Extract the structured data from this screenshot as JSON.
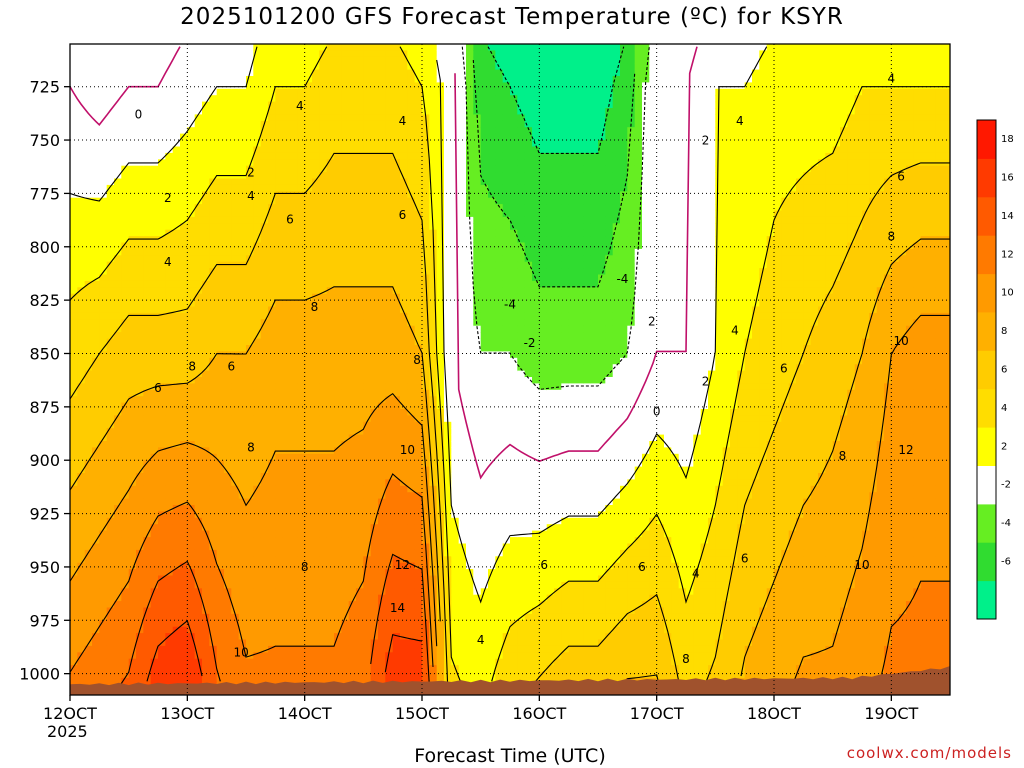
{
  "chart_data": {
    "type": "heatmap",
    "title": "2025101200 GFS Forecast Temperature (ºC) for KSYR",
    "xlabel": "Forecast Time (UTC)",
    "ylabel": "",
    "year_label": "2025",
    "x_tick_labels": [
      "12OCT",
      "13OCT",
      "14OCT",
      "15OCT",
      "16OCT",
      "17OCT",
      "18OCT",
      "19OCT"
    ],
    "x_ticks": [
      0,
      24,
      48,
      72,
      96,
      120,
      144,
      168
    ],
    "x_range": [
      0,
      180
    ],
    "y_ticks": [
      725,
      750,
      775,
      800,
      825,
      850,
      875,
      900,
      925,
      950,
      975,
      1000
    ],
    "y_range": [
      705,
      1010
    ],
    "y_reversed": true,
    "colorbar": {
      "levels": [
        -8,
        -6,
        -4,
        -2,
        2,
        4,
        6,
        8,
        10,
        12,
        14,
        16,
        18,
        20
      ],
      "tick_labels": [
        "-6",
        "-4",
        "-2",
        "2",
        "4",
        "6",
        "8",
        "10",
        "12",
        "14",
        "16",
        "18"
      ],
      "colors": [
        "#00f08a",
        "#30dc30",
        "#66ee22",
        "#ffffff",
        "#ffff00",
        "#ffdd00",
        "#ffcc00",
        "#ffb000",
        "#ff9a00",
        "#ff7a00",
        "#ff5a00",
        "#ff3a00",
        "#ff1800"
      ]
    },
    "columns": [
      {
        "t": 0,
        "T725": 0,
        "T850": 5,
        "T1000": 12
      },
      {
        "t": 6,
        "T725": -1,
        "T850": 6,
        "T1000": 13
      },
      {
        "t": 12,
        "T725": 0,
        "T850": 7,
        "T1000": 14
      },
      {
        "t": 18,
        "T725": 0,
        "T850": 7,
        "T1000": 17
      },
      {
        "t": 24,
        "T725": 1,
        "T850": 7,
        "T1000": 18
      },
      {
        "t": 30,
        "T725": 2,
        "T850": 8,
        "T1000": 14
      },
      {
        "t": 36,
        "T725": 2,
        "T850": 8,
        "T1000": 12
      },
      {
        "t": 42,
        "T725": 4,
        "T850": 9,
        "T1000": 12
      },
      {
        "t": 48,
        "T725": 4,
        "T850": 9,
        "T1000": 12
      },
      {
        "t": 54,
        "T725": 5,
        "T850": 9,
        "T1000": 12
      },
      {
        "t": 60,
        "T725": 5,
        "T850": 9,
        "T1000": 13
      },
      {
        "t": 66,
        "T725": 5,
        "T850": 9,
        "T1000": 17
      },
      {
        "t": 72,
        "T725": 4,
        "T850": 8,
        "T1000": 17
      },
      {
        "t": 78,
        "T725": 1,
        "T850": 0,
        "T1000": 4
      },
      {
        "t": 84,
        "T725": -5,
        "T850": -2,
        "T1000": 3
      },
      {
        "t": 90,
        "T725": -6,
        "T850": -2,
        "T1000": 5
      },
      {
        "t": 96,
        "T725": -7,
        "T850": -3,
        "T1000": 6
      },
      {
        "t": 102,
        "T725": -7,
        "T850": -3,
        "T1000": 7
      },
      {
        "t": 108,
        "T725": -7,
        "T850": -3,
        "T1000": 7
      },
      {
        "t": 114,
        "T725": -5,
        "T850": -2,
        "T1000": 8
      },
      {
        "t": 120,
        "T725": 0,
        "T850": 0,
        "T1000": 8
      },
      {
        "t": 126,
        "T725": 0,
        "T850": 0,
        "T1000": 5
      },
      {
        "t": 132,
        "T725": 2,
        "T850": 2,
        "T1000": 6
      },
      {
        "t": 138,
        "T725": 2,
        "T850": 4,
        "T1000": 8
      },
      {
        "t": 144,
        "T725": 3,
        "T850": 5,
        "T1000": 9
      },
      {
        "t": 150,
        "T725": 3,
        "T850": 6,
        "T1000": 10
      },
      {
        "t": 156,
        "T725": 3,
        "T850": 7,
        "T1000": 10
      },
      {
        "t": 162,
        "T725": 4,
        "T850": 8,
        "T1000": 11
      },
      {
        "t": 168,
        "T725": 4,
        "T850": 10,
        "T1000": 12
      },
      {
        "t": 174,
        "T725": 4,
        "T850": 11,
        "T1000": 12
      },
      {
        "t": 180,
        "T725": 4,
        "T850": 11,
        "T1000": 12
      }
    ],
    "annotations": [
      {
        "text": "0",
        "t": 14,
        "p": 740
      },
      {
        "text": "2",
        "t": 20,
        "p": 779
      },
      {
        "text": "4",
        "t": 20,
        "p": 809
      },
      {
        "text": "6",
        "t": 18,
        "p": 868
      },
      {
        "text": "8",
        "t": 25,
        "p": 858
      },
      {
        "text": "2",
        "t": 37,
        "p": 767
      },
      {
        "text": "4",
        "t": 37,
        "p": 778
      },
      {
        "text": "6",
        "t": 33,
        "p": 858
      },
      {
        "text": "8",
        "t": 37,
        "p": 896
      },
      {
        "text": "4",
        "t": 47,
        "p": 736
      },
      {
        "text": "6",
        "t": 45,
        "p": 789
      },
      {
        "text": "8",
        "t": 50,
        "p": 830
      },
      {
        "text": "8",
        "t": 48,
        "p": 952
      },
      {
        "text": "10",
        "t": 35,
        "p": 992
      },
      {
        "text": "4",
        "t": 68,
        "p": 743
      },
      {
        "text": "6",
        "t": 68,
        "p": 787
      },
      {
        "text": "8",
        "t": 71,
        "p": 855
      },
      {
        "text": "10",
        "t": 69,
        "p": 897
      },
      {
        "text": "12",
        "t": 68,
        "p": 951
      },
      {
        "text": "14",
        "t": 67,
        "p": 971
      },
      {
        "text": "4",
        "t": 84,
        "p": 986
      },
      {
        "text": "6",
        "t": 97,
        "p": 951
      },
      {
        "text": "-4",
        "t": 90,
        "p": 829
      },
      {
        "text": "-2",
        "t": 94,
        "p": 847
      },
      {
        "text": "-4",
        "t": 113,
        "p": 817
      },
      {
        "text": "2",
        "t": 119,
        "p": 837
      },
      {
        "text": "0",
        "t": 120,
        "p": 879
      },
      {
        "text": "6",
        "t": 117,
        "p": 952
      },
      {
        "text": "4",
        "t": 128,
        "p": 955
      },
      {
        "text": "2",
        "t": 130,
        "p": 752
      },
      {
        "text": "4",
        "t": 137,
        "p": 743
      },
      {
        "text": "4",
        "t": 136,
        "p": 841
      },
      {
        "text": "2",
        "t": 130,
        "p": 865
      },
      {
        "text": "6",
        "t": 146,
        "p": 859
      },
      {
        "text": "6",
        "t": 138,
        "p": 948
      },
      {
        "text": "8",
        "t": 126,
        "p": 995
      },
      {
        "text": "4",
        "t": 168,
        "p": 723
      },
      {
        "text": "6",
        "t": 170,
        "p": 769
      },
      {
        "text": "8",
        "t": 168,
        "p": 797
      },
      {
        "text": "10",
        "t": 170,
        "p": 846
      },
      {
        "text": "12",
        "t": 171,
        "p": 897
      },
      {
        "text": "8",
        "t": 158,
        "p": 900
      },
      {
        "text": "10",
        "t": 162,
        "p": 951
      }
    ]
  },
  "footer": {
    "credit": "coolwx.com/models"
  }
}
